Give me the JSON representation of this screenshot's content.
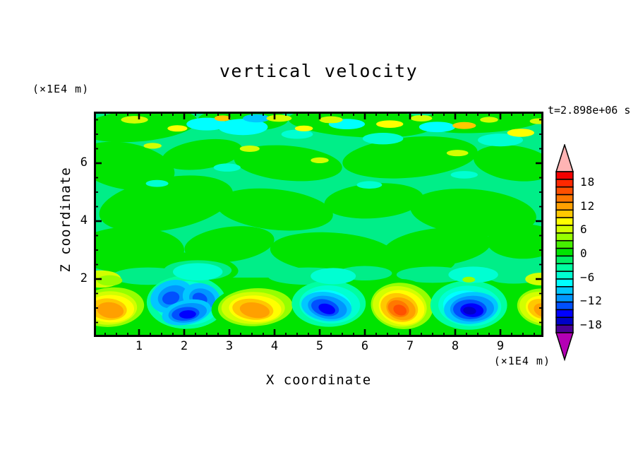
{
  "figure": {
    "title": "vertical velocity",
    "timestamp": "t=2.898e+06 s",
    "xlabel": "X coordinate",
    "ylabel": "Z coordinate",
    "x_unit_label": "(×1E4 m)",
    "y_unit_label": "(×1E4 m)"
  },
  "chart_data": {
    "type": "filled_contour",
    "title": "vertical velocity",
    "xlabel": "X coordinate",
    "ylabel": "Z coordinate",
    "x_unit": "(×1E4 m)",
    "y_unit": "(×1E4 m)",
    "time_annotation": "t=2.898e+06 s",
    "x_range": [
      0,
      9.95
    ],
    "z_range": [
      0,
      7.78
    ],
    "x_major_ticks": [
      1,
      2,
      3,
      4,
      5,
      6,
      7,
      8,
      9
    ],
    "x_minor_step": 0.25,
    "y_major_ticks": [
      2,
      4,
      6
    ],
    "y_minor_step": 0.5,
    "grid": false,
    "colorbar": {
      "labels": [
        "18",
        "12",
        "6",
        "0",
        "-6",
        "-12",
        "-18"
      ],
      "label_values": [
        18,
        12,
        6,
        0,
        -6,
        -12,
        -18
      ],
      "cells": [
        "#f50000",
        "#ff2800",
        "#ff5000",
        "#ff7800",
        "#ffa000",
        "#ffc800",
        "#ffff00",
        "#d2ff00",
        "#96ff00",
        "#46f000",
        "#00e400",
        "#00f064",
        "#00ffa0",
        "#00ffd2",
        "#00ffff",
        "#00c8ff",
        "#0096ff",
        "#0050ff",
        "#0000ff",
        "#0000c8",
        "#4b0096"
      ],
      "over_color": "#ffb4b4",
      "under_color": "#b400b4",
      "position": "right"
    },
    "layer_sequences": {
      "warm": [
        10,
        8,
        7,
        6,
        5,
        4,
        3,
        2
      ],
      "cold": [
        12,
        13,
        14,
        15,
        16,
        17,
        18,
        19
      ]
    },
    "field": {
      "base_color": "#00ee88",
      "green_color": "#00e400",
      "lower_band_top_z": 2.05,
      "patches": [
        {
          "x": 1.0,
          "z": 7.3,
          "rx": 1.3,
          "ry": 0.55,
          "rot": -5
        },
        {
          "x": 3.3,
          "z": 7.5,
          "rx": 1.0,
          "ry": 0.4,
          "rot": 0
        },
        {
          "x": 5.9,
          "z": 7.4,
          "rx": 1.6,
          "ry": 0.5,
          "rot": 3
        },
        {
          "x": 8.6,
          "z": 7.5,
          "rx": 1.4,
          "ry": 0.45,
          "rot": -3
        },
        {
          "x": 0.7,
          "z": 5.9,
          "rx": 1.1,
          "ry": 0.8,
          "rot": 10
        },
        {
          "x": 2.4,
          "z": 6.3,
          "rx": 0.9,
          "ry": 0.5,
          "rot": -8
        },
        {
          "x": 4.3,
          "z": 6.0,
          "rx": 1.2,
          "ry": 0.6,
          "rot": 5
        },
        {
          "x": 7.0,
          "z": 6.2,
          "rx": 1.5,
          "ry": 0.7,
          "rot": -5
        },
        {
          "x": 9.3,
          "z": 6.0,
          "rx": 0.9,
          "ry": 0.6,
          "rot": 8
        },
        {
          "x": 1.6,
          "z": 4.6,
          "rx": 1.5,
          "ry": 0.9,
          "rot": -10
        },
        {
          "x": 4.0,
          "z": 4.4,
          "rx": 1.3,
          "ry": 0.7,
          "rot": 6
        },
        {
          "x": 6.2,
          "z": 4.7,
          "rx": 1.1,
          "ry": 0.6,
          "rot": -4
        },
        {
          "x": 8.4,
          "z": 4.3,
          "rx": 1.4,
          "ry": 0.8,
          "rot": 5
        },
        {
          "x": 0.8,
          "z": 3.0,
          "rx": 1.2,
          "ry": 0.8,
          "rot": 0
        },
        {
          "x": 3.0,
          "z": 3.2,
          "rx": 1.0,
          "ry": 0.6,
          "rot": -7
        },
        {
          "x": 5.3,
          "z": 2.9,
          "rx": 1.4,
          "ry": 0.7,
          "rot": 4
        },
        {
          "x": 7.6,
          "z": 3.1,
          "rx": 1.2,
          "ry": 0.65,
          "rot": -6
        },
        {
          "x": 9.5,
          "z": 3.3,
          "rx": 0.8,
          "ry": 0.6,
          "rot": 0
        },
        {
          "x": 2.2,
          "z": 2.4,
          "rx": 1.0,
          "ry": 0.5,
          "rot": 5
        },
        {
          "x": 6.8,
          "z": 2.5,
          "rx": 1.2,
          "ry": 0.5,
          "rot": -3
        }
      ],
      "smoothers": [
        {
          "x": 1.2,
          "z": 2.1,
          "rx": 0.8,
          "ry": 0.3
        },
        {
          "x": 2.3,
          "z": 2.3,
          "rx": 0.75,
          "ry": 0.35
        },
        {
          "x": 4.75,
          "z": 2.1,
          "rx": 0.9,
          "ry": 0.3
        },
        {
          "x": 6.0,
          "z": 2.2,
          "rx": 0.6,
          "ry": 0.25
        },
        {
          "x": 7.5,
          "z": 2.15,
          "rx": 0.8,
          "ry": 0.28
        },
        {
          "x": 9.3,
          "z": 2.1,
          "rx": 0.6,
          "ry": 0.26
        }
      ],
      "speckles": [
        {
          "x": 2.5,
          "z": 7.35,
          "rx": 0.45,
          "ry": 0.22,
          "c": "#00ffff"
        },
        {
          "x": 3.3,
          "z": 7.25,
          "rx": 0.55,
          "ry": 0.28,
          "c": "#00ffff"
        },
        {
          "x": 3.6,
          "z": 7.55,
          "rx": 0.3,
          "ry": 0.14,
          "c": "#00c8ff"
        },
        {
          "x": 4.5,
          "z": 7.0,
          "rx": 0.35,
          "ry": 0.16,
          "c": "#00ffd2"
        },
        {
          "x": 5.6,
          "z": 7.35,
          "rx": 0.4,
          "ry": 0.18,
          "c": "#00ffff"
        },
        {
          "x": 6.4,
          "z": 6.85,
          "rx": 0.45,
          "ry": 0.2,
          "c": "#00ffd2"
        },
        {
          "x": 7.6,
          "z": 7.25,
          "rx": 0.4,
          "ry": 0.18,
          "c": "#00ffff"
        },
        {
          "x": 9.0,
          "z": 6.8,
          "rx": 0.5,
          "ry": 0.22,
          "c": "#00ffd2"
        },
        {
          "x": 2.95,
          "z": 5.85,
          "rx": 0.3,
          "ry": 0.14,
          "c": "#00ffd2"
        },
        {
          "x": 6.1,
          "z": 5.25,
          "rx": 0.28,
          "ry": 0.13,
          "c": "#00ffd2"
        },
        {
          "x": 1.4,
          "z": 5.3,
          "rx": 0.25,
          "ry": 0.12,
          "c": "#00ffd2"
        },
        {
          "x": 8.2,
          "z": 5.6,
          "rx": 0.3,
          "ry": 0.13,
          "c": "#00ffd2"
        },
        {
          "x": 0.9,
          "z": 7.5,
          "rx": 0.3,
          "ry": 0.13,
          "c": "#d2ff00"
        },
        {
          "x": 1.85,
          "z": 7.2,
          "rx": 0.22,
          "ry": 0.11,
          "c": "#ffff00"
        },
        {
          "x": 2.85,
          "z": 7.55,
          "rx": 0.18,
          "ry": 0.1,
          "c": "#ffc800"
        },
        {
          "x": 4.1,
          "z": 7.55,
          "rx": 0.28,
          "ry": 0.12,
          "c": "#d2ff00"
        },
        {
          "x": 4.65,
          "z": 7.2,
          "rx": 0.2,
          "ry": 0.1,
          "c": "#ffff00"
        },
        {
          "x": 5.25,
          "z": 7.5,
          "rx": 0.26,
          "ry": 0.12,
          "c": "#d2ff00"
        },
        {
          "x": 6.55,
          "z": 7.35,
          "rx": 0.3,
          "ry": 0.13,
          "c": "#ffff00"
        },
        {
          "x": 7.25,
          "z": 7.55,
          "rx": 0.24,
          "ry": 0.11,
          "c": "#d2ff00"
        },
        {
          "x": 8.2,
          "z": 7.3,
          "rx": 0.26,
          "ry": 0.12,
          "c": "#ffc800"
        },
        {
          "x": 8.75,
          "z": 7.5,
          "rx": 0.2,
          "ry": 0.1,
          "c": "#d2ff00"
        },
        {
          "x": 9.45,
          "z": 7.05,
          "rx": 0.3,
          "ry": 0.14,
          "c": "#ffff00"
        },
        {
          "x": 9.85,
          "z": 7.45,
          "rx": 0.2,
          "ry": 0.1,
          "c": "#d2ff00"
        },
        {
          "x": 3.45,
          "z": 6.5,
          "rx": 0.22,
          "ry": 0.11,
          "c": "#d2ff00"
        },
        {
          "x": 1.3,
          "z": 6.6,
          "rx": 0.2,
          "ry": 0.1,
          "c": "#d2ff00"
        },
        {
          "x": 8.05,
          "z": 6.35,
          "rx": 0.24,
          "ry": 0.11,
          "c": "#d2ff00"
        },
        {
          "x": 5.0,
          "z": 6.1,
          "rx": 0.2,
          "ry": 0.1,
          "c": "#d2ff00"
        }
      ],
      "wisps": [
        {
          "x": 0.15,
          "z": 2.0,
          "rx": 0.45,
          "ry": 0.3,
          "c": "#d2ff00"
        },
        {
          "x": 0.35,
          "z": 1.95,
          "rx": 0.28,
          "ry": 0.18,
          "c": "#96ff00"
        },
        {
          "x": 2.3,
          "z": 2.25,
          "rx": 0.55,
          "ry": 0.3,
          "c": "#00ffd2"
        },
        {
          "x": 5.3,
          "z": 2.1,
          "rx": 0.5,
          "ry": 0.28,
          "c": "#00ffd2"
        },
        {
          "x": 8.4,
          "z": 2.15,
          "rx": 0.55,
          "ry": 0.28,
          "c": "#00ffd2"
        },
        {
          "x": 8.3,
          "z": 1.98,
          "rx": 0.14,
          "ry": 0.1,
          "c": "#96ff00"
        },
        {
          "x": 9.9,
          "z": 2.0,
          "rx": 0.35,
          "ry": 0.22,
          "c": "#d2ff00"
        }
      ]
    },
    "features": [
      {
        "name": "updraft-1",
        "x": 0.35,
        "z": 1.05,
        "rx": 0.85,
        "ry": 0.78,
        "palette": "warm",
        "start": 0,
        "levels": 6,
        "shrink": 0.13,
        "rot": -8,
        "peak_w": 13
      },
      {
        "name": "downdraft-1-halo",
        "x": 2.05,
        "z": 1.2,
        "rx": 0.88,
        "ry": 0.92,
        "palette": "cold",
        "start": 0,
        "levels": 3,
        "shrink": 0.18,
        "rot": 0
      },
      {
        "name": "downdraft-1-wing-left",
        "x": 1.72,
        "z": 1.4,
        "rx": 0.48,
        "ry": 0.55,
        "palette": "cold",
        "start": 3,
        "levels": 3,
        "shrink": 0.3,
        "rot": -20
      },
      {
        "name": "downdraft-1-wing-right",
        "x": 2.38,
        "z": 1.35,
        "rx": 0.42,
        "ry": 0.5,
        "palette": "cold",
        "start": 3,
        "levels": 3,
        "shrink": 0.3,
        "rot": 15
      },
      {
        "name": "downdraft-1-core",
        "x": 2.05,
        "z": 0.85,
        "rx": 0.55,
        "ry": 0.42,
        "palette": "cold",
        "start": 3,
        "levels": 4,
        "shrink": 0.22,
        "rot": -12,
        "peak_w": -15
      },
      {
        "name": "updraft-2",
        "x": 3.55,
        "z": 1.05,
        "rx": 0.95,
        "ry": 0.75,
        "palette": "warm",
        "start": 0,
        "levels": 6,
        "shrink": 0.13,
        "rot": -6,
        "peak_w": 13
      },
      {
        "name": "downdraft-2-halo",
        "x": 5.2,
        "z": 1.15,
        "rx": 0.82,
        "ry": 0.8,
        "palette": "cold",
        "start": 0,
        "levels": 3,
        "shrink": 0.18,
        "rot": 0
      },
      {
        "name": "downdraft-2-core",
        "x": 5.15,
        "z": 1.05,
        "rx": 0.56,
        "ry": 0.5,
        "palette": "cold",
        "start": 3,
        "levels": 4,
        "shrink": 0.22,
        "rot": 8,
        "peak_w": -15
      },
      {
        "name": "updraft-3",
        "x": 6.8,
        "z": 1.1,
        "rx": 0.78,
        "ry": 0.9,
        "palette": "warm",
        "start": 0,
        "levels": 8,
        "shrink": 0.115,
        "rot": 3,
        "peak_w": 17
      },
      {
        "name": "downdraft-3-halo",
        "x": 8.3,
        "z": 1.1,
        "rx": 0.85,
        "ry": 0.85,
        "palette": "cold",
        "start": 0,
        "levels": 3,
        "shrink": 0.18,
        "rot": 0
      },
      {
        "name": "downdraft-3-core",
        "x": 8.35,
        "z": 1.0,
        "rx": 0.6,
        "ry": 0.55,
        "palette": "cold",
        "start": 3,
        "levels": 5,
        "shrink": 0.19,
        "rot": -5,
        "peak_w": -17
      },
      {
        "name": "updraft-4",
        "x": 9.95,
        "z": 1.05,
        "rx": 0.7,
        "ry": 0.75,
        "palette": "warm",
        "start": 0,
        "levels": 6,
        "shrink": 0.14,
        "rot": 5,
        "peak_w": 13
      }
    ]
  }
}
